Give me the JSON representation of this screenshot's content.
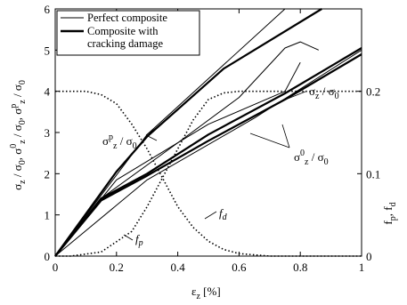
{
  "chart_data": {
    "type": "line",
    "xlabel": "ε_z [%]",
    "ylabel_left": "σ_z / σ_0, σ^0_z / σ_0, σ^p_z / σ_0",
    "ylabel_right": "f_p, f_d",
    "xlim": [
      0,
      1
    ],
    "ylim_left": [
      0,
      6
    ],
    "ylim_right": [
      0,
      0.3
    ],
    "x_ticks": [
      "0",
      "0.2",
      "0.4",
      "0.6",
      "0.8",
      "1"
    ],
    "y_ticks_left": [
      "0",
      "1",
      "2",
      "3",
      "4",
      "5",
      "6"
    ],
    "y_ticks_right": [
      "0",
      "0.1",
      "0.2"
    ],
    "grid": false,
    "legend_position": "top-left",
    "legend": [
      {
        "label": "Perfect composite",
        "style": "thin"
      },
      {
        "label_lines": [
          "Composite with",
          "cracking damage"
        ],
        "style": "thick"
      }
    ],
    "annotations": {
      "sigma_z": "σ_z / σ_0",
      "sigma_p": "σ^p_z / σ_0",
      "sigma_0": "σ^0_z / σ_0",
      "f_d": "f_d",
      "f_p": "f_p"
    },
    "series": [
      {
        "group": "perfect",
        "axis": "left",
        "style": "thin",
        "x": [
          0,
          0.3,
          0.75
        ],
        "y": [
          0,
          2.95,
          6.0
        ]
      },
      {
        "group": "perfect",
        "axis": "left",
        "style": "thin",
        "x": [
          0,
          0.2,
          0.5,
          0.75,
          0.8
        ],
        "y": [
          0,
          1.85,
          3.2,
          4.0,
          4.7
        ]
      },
      {
        "group": "perfect",
        "axis": "left",
        "style": "thin",
        "x": [
          0,
          0.15,
          0.4,
          0.6,
          0.75,
          0.8,
          0.86
        ],
        "y": [
          0,
          1.4,
          2.75,
          3.85,
          5.05,
          5.2,
          5.0
        ]
      },
      {
        "group": "perfect",
        "axis": "left",
        "style": "thin",
        "x": [
          0,
          0.3,
          0.65,
          1.0
        ],
        "y": [
          0,
          1.85,
          3.35,
          5.0
        ]
      },
      {
        "group": "damage",
        "axis": "left",
        "style": "thick",
        "x": [
          0,
          0.2,
          0.3,
          0.55,
          0.87
        ],
        "y": [
          0,
          2.05,
          2.9,
          4.55,
          6.0
        ]
      },
      {
        "group": "damage",
        "axis": "left",
        "style": "thick",
        "x": [
          0,
          0.15,
          0.3,
          0.5,
          0.75,
          1.0
        ],
        "y": [
          0,
          1.4,
          2.0,
          2.95,
          3.95,
          5.05
        ]
      },
      {
        "group": "damage",
        "axis": "left",
        "style": "thick",
        "x": [
          0,
          0.15,
          0.3,
          0.5,
          0.75,
          1.0
        ],
        "y": [
          0,
          1.35,
          1.95,
          2.8,
          3.8,
          4.9
        ]
      },
      {
        "name": "f_d",
        "axis": "right",
        "style": "dotted",
        "x": [
          0,
          0.05,
          0.15,
          0.25,
          0.3,
          0.35,
          0.4,
          0.45,
          0.5,
          0.55,
          0.6,
          0.7,
          0.8,
          1.0
        ],
        "y": [
          0,
          0.0,
          0.005,
          0.03,
          0.06,
          0.095,
          0.13,
          0.165,
          0.19,
          0.198,
          0.2,
          0.2,
          0.2,
          0.2
        ]
      },
      {
        "name": "f_p",
        "axis": "right",
        "style": "dotted",
        "x": [
          0,
          0.1,
          0.15,
          0.2,
          0.25,
          0.3,
          0.35,
          0.4,
          0.45,
          0.5,
          0.55,
          0.6,
          0.7,
          1.0
        ],
        "y": [
          0.2,
          0.2,
          0.196,
          0.185,
          0.16,
          0.13,
          0.095,
          0.06,
          0.035,
          0.018,
          0.008,
          0.003,
          0,
          0
        ]
      }
    ]
  }
}
